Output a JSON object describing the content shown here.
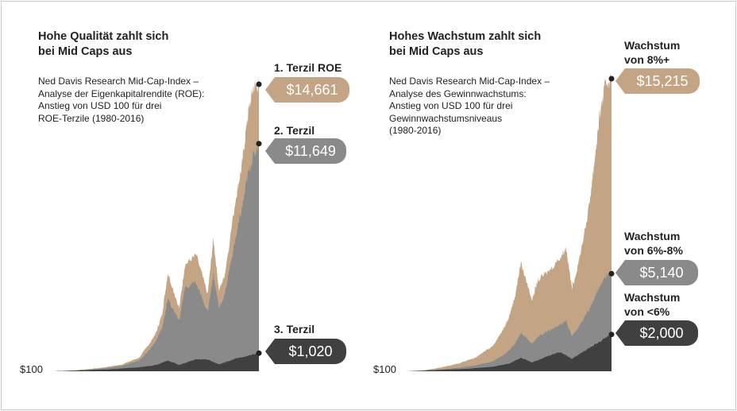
{
  "colors": {
    "top": "#c3a585",
    "middle": "#8a8a8a",
    "bottom": "#404040"
  },
  "chart_data": [
    {
      "type": "area",
      "title": "Hohe Qualität zahlt sich\nbei Mid Caps aus",
      "subtitle": "Ned Davis Research Mid-Cap-Index –\nAnalyse der Eigenkapitalrendite (ROE):\nAnstieg von USD 100 für drei\nROE-Terzile (1980-2016)",
      "base_label": "$100",
      "x_range": [
        1980,
        2016
      ],
      "y_start": 100,
      "series": [
        {
          "name": "1. Terzil ROE",
          "end_label": "$14,661",
          "end_value": 14661,
          "color": "#c3a585",
          "x": [
            1980,
            1983,
            1986,
            1989,
            1992,
            1995,
            1997,
            1998,
            1999,
            2000,
            2002,
            2003,
            2005,
            2007,
            2008,
            2009,
            2010,
            2012,
            2013,
            2014,
            2015,
            2016
          ],
          "values": [
            100,
            130,
            210,
            300,
            450,
            800,
            1600,
            2100,
            3000,
            5100,
            3300,
            5500,
            6000,
            4000,
            6800,
            4200,
            5000,
            9000,
            10500,
            13000,
            14500,
            14661
          ]
        },
        {
          "name": "2. Terzil",
          "end_label": "$11,649",
          "end_value": 11649,
          "color": "#8a8a8a",
          "x": [
            1980,
            1983,
            1986,
            1989,
            1992,
            1995,
            1997,
            1998,
            1999,
            2000,
            2002,
            2003,
            2005,
            2007,
            2008,
            2009,
            2010,
            2012,
            2013,
            2014,
            2015,
            2016
          ],
          "values": [
            100,
            120,
            180,
            250,
            380,
            650,
            1250,
            1700,
            2300,
            3700,
            2700,
            4400,
            4600,
            3100,
            5000,
            3300,
            4000,
            7000,
            8300,
            10000,
            11000,
            11649
          ]
        },
        {
          "name": "3. Terzil",
          "end_label": "$1,020",
          "end_value": 1020,
          "color": "#404040",
          "x": [
            1980,
            1985,
            1990,
            1995,
            1998,
            2000,
            2002,
            2005,
            2007,
            2009,
            2012,
            2014,
            2016
          ],
          "values": [
            100,
            150,
            200,
            300,
            420,
            650,
            420,
            700,
            700,
            450,
            750,
            880,
            1020
          ]
        }
      ]
    },
    {
      "type": "area",
      "title": "Hohes Wachstum zahlt sich\nbei Mid Caps aus",
      "subtitle": "Ned Davis Research Mid-Cap-Index –\nAnalyse des Gewinnwachstums:\nAnstieg von USD 100 für drei\nGewinnwachstumsniveaus\n(1980-2016)",
      "base_label": "$100",
      "x_range": [
        1980,
        2016
      ],
      "y_start": 100,
      "series": [
        {
          "name": "Wachstum\nvon 8%+",
          "end_label": "$15,215",
          "end_value": 15215,
          "color": "#c3a585",
          "x": [
            1980,
            1983,
            1986,
            1989,
            1992,
            1995,
            1997,
            1998,
            1999,
            2000,
            2002,
            2003,
            2005,
            2007,
            2008,
            2009,
            2010,
            2012,
            2013,
            2014,
            2015,
            2016
          ],
          "values": [
            100,
            150,
            300,
            500,
            800,
            1400,
            2300,
            3000,
            4000,
            5700,
            3800,
            4800,
            5300,
            6000,
            6500,
            4400,
            5400,
            8500,
            11000,
            13500,
            15000,
            15215
          ]
        },
        {
          "name": "Wachstum\nvon 6%-8%",
          "end_label": "$5,140",
          "end_value": 5140,
          "color": "#8a8a8a",
          "x": [
            1980,
            1983,
            1986,
            1989,
            1992,
            1995,
            1997,
            1998,
            1999,
            2000,
            2002,
            2003,
            2005,
            2007,
            2008,
            2009,
            2010,
            2012,
            2013,
            2014,
            2015,
            2016
          ],
          "values": [
            100,
            130,
            200,
            280,
            400,
            600,
            950,
            1200,
            1500,
            2100,
            1500,
            1900,
            2200,
            2500,
            2700,
            1900,
            2300,
            3300,
            3900,
            4500,
            5000,
            5140
          ]
        },
        {
          "name": "Wachstum\nvon <6%",
          "end_label": "$2,000",
          "end_value": 2000,
          "color": "#404040",
          "x": [
            1980,
            1985,
            1990,
            1995,
            1998,
            2000,
            2002,
            2005,
            2007,
            2009,
            2012,
            2014,
            2016
          ],
          "values": [
            100,
            160,
            220,
            330,
            500,
            800,
            550,
            900,
            1100,
            750,
            1300,
            1650,
            2000
          ]
        }
      ]
    }
  ]
}
